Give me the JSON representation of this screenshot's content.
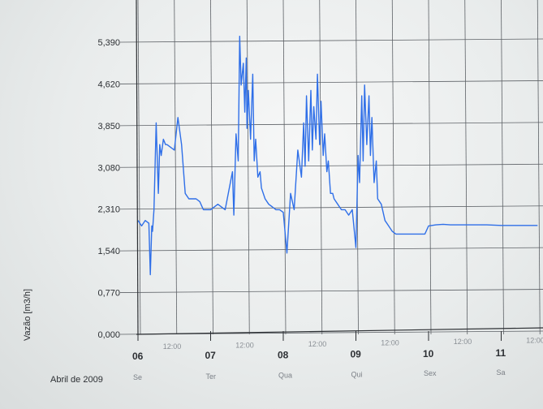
{
  "chart_data": {
    "type": "line",
    "ylabel": "Vazão [m3/h]",
    "month_label": "Abril de 2009",
    "ylim": [
      0,
      5.39
    ],
    "y_ticks": [
      "0,000",
      "0,770",
      "1,540",
      "2,310",
      "3,080",
      "3,850",
      "4,620",
      "5,390"
    ],
    "days": [
      {
        "num": "06",
        "name": "Se"
      },
      {
        "num": "07",
        "name": "Ter"
      },
      {
        "num": "08",
        "name": "Qua"
      },
      {
        "num": "09",
        "name": "Qui"
      },
      {
        "num": "10",
        "name": "Sex"
      },
      {
        "num": "11",
        "name": "Sa"
      }
    ],
    "noon_label": "12:00",
    "noon_count": 6,
    "line_color": "#2f6fe8",
    "series": [
      {
        "x": [
          0.0,
          0.05,
          0.1,
          0.15,
          0.17,
          0.19,
          0.2,
          0.22,
          0.25,
          0.28,
          0.3,
          0.32,
          0.35,
          0.38,
          0.4,
          0.45,
          0.5,
          0.55,
          0.6,
          0.65,
          0.7,
          0.75,
          0.8,
          0.85,
          0.9,
          1.0,
          1.1,
          1.2,
          1.3,
          1.32,
          1.35,
          1.38,
          1.4,
          1.42,
          1.45,
          1.47,
          1.49,
          1.5,
          1.52,
          1.55,
          1.58,
          1.6,
          1.62,
          1.65,
          1.68,
          1.7,
          1.75,
          1.8,
          1.85,
          1.9,
          1.95,
          2.0,
          2.05,
          2.1,
          2.15,
          2.2,
          2.25,
          2.28,
          2.3,
          2.32,
          2.35,
          2.38,
          2.4,
          2.42,
          2.45,
          2.47,
          2.5,
          2.52,
          2.55,
          2.57,
          2.6,
          2.62,
          2.65,
          2.68,
          2.7,
          2.75,
          2.8,
          2.85,
          2.9,
          2.95,
          3.0,
          3.03,
          3.05,
          3.08,
          3.1,
          3.12,
          3.15,
          3.18,
          3.2,
          3.22,
          3.25,
          3.28,
          3.3,
          3.35,
          3.4,
          3.45,
          3.5,
          3.55,
          3.6,
          3.65,
          3.7,
          3.75,
          3.8,
          3.85,
          3.9,
          3.95,
          4.0,
          4.1,
          4.2,
          4.3,
          4.4,
          4.6,
          4.8,
          5.0,
          5.5
        ],
        "y": [
          2.1,
          2.0,
          2.1,
          2.05,
          1.1,
          2.0,
          1.9,
          2.3,
          3.9,
          2.6,
          3.5,
          3.3,
          3.6,
          3.5,
          3.5,
          3.45,
          3.4,
          4.0,
          3.5,
          2.6,
          2.5,
          2.5,
          2.5,
          2.45,
          2.3,
          2.3,
          2.4,
          2.3,
          3.0,
          2.2,
          3.7,
          3.2,
          5.5,
          4.6,
          5.0,
          4.1,
          5.1,
          3.8,
          4.5,
          3.6,
          4.8,
          3.2,
          3.6,
          2.9,
          3.0,
          2.7,
          2.5,
          2.4,
          2.35,
          2.3,
          2.3,
          2.25,
          1.5,
          2.6,
          2.3,
          3.4,
          2.9,
          3.9,
          3.1,
          4.4,
          3.2,
          4.5,
          3.4,
          4.2,
          3.6,
          4.8,
          3.5,
          4.3,
          3.3,
          3.7,
          3.0,
          3.2,
          2.6,
          2.6,
          2.5,
          2.4,
          2.3,
          2.3,
          2.2,
          2.3,
          1.6,
          3.3,
          2.8,
          4.4,
          3.2,
          4.6,
          3.5,
          4.4,
          3.3,
          4.0,
          2.8,
          3.2,
          2.5,
          2.4,
          2.1,
          2.0,
          1.9,
          1.85,
          1.85,
          1.85,
          1.85,
          1.85,
          1.85,
          1.85,
          1.85,
          1.85,
          2.0,
          2.02,
          2.03,
          2.02,
          2.02,
          2.02,
          2.02,
          2.01,
          2.01
        ]
      }
    ]
  }
}
